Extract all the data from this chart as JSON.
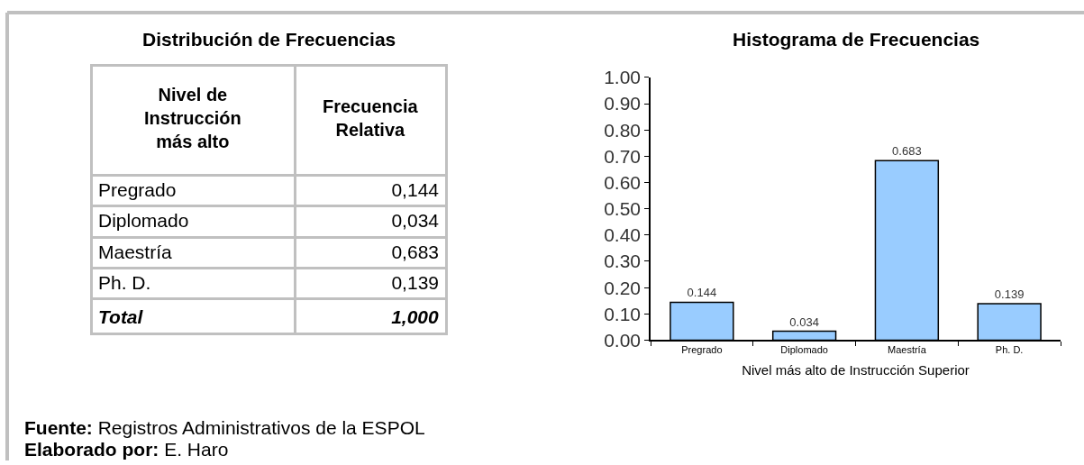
{
  "chart_data": [
    {
      "type": "other",
      "title": "Distribución de Frecuencias",
      "xlabel": "Nivel de Instrucción más alto",
      "ylabel": "Frecuencia Relativa",
      "categories": [
        "Pregrado",
        "Diplomado",
        "Maestría",
        "Ph. D.",
        "Total"
      ],
      "value_labels": [
        "0,144",
        "0,034",
        "0,683",
        "0,139",
        "1,000"
      ],
      "annotations": [
        "Fuente: Registros Administrativos de la ESPOL",
        "Elaborado por: E. Haro"
      ]
    },
    {
      "type": "bar",
      "title": "Histograma de Frecuencias",
      "xlabel": "Nivel más alto de Instrucción Superior",
      "categories": [
        "Pregrado",
        "Diplomado",
        "Maestría",
        "Ph. D."
      ],
      "values": [
        0.144,
        0.034,
        0.683,
        0.139
      ],
      "color": "#99ccff",
      "ylim": [
        0,
        1
      ],
      "yticks": [
        {
          "value": 0,
          "label": "0.00"
        },
        {
          "value": 0.1,
          "label": "0.10"
        },
        {
          "value": 0.2,
          "label": "0.20"
        },
        {
          "value": 0.3,
          "label": "0.30"
        },
        {
          "value": 0.4,
          "label": "0.40"
        },
        {
          "value": 0.5,
          "label": "0.50"
        },
        {
          "value": 0.6,
          "label": "0.60"
        },
        {
          "value": 0.7,
          "label": "0.70"
        },
        {
          "value": 0.8,
          "label": "0.80"
        },
        {
          "value": 0.9,
          "label": "0.90"
        },
        {
          "value": 1,
          "label": "1.00"
        }
      ],
      "data_labels": true
    }
  ]
}
